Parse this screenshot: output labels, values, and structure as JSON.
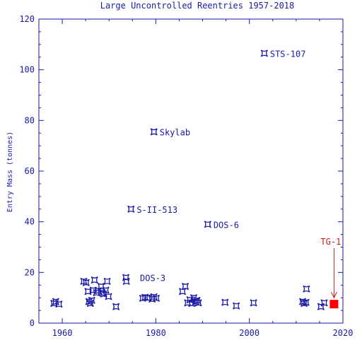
{
  "chart_data": {
    "type": "scatter",
    "title": "Large Uncontrolled Reentries 1957-2018",
    "xlabel": "",
    "ylabel": "Entry Mass (tonnes)",
    "xlim": [
      1955,
      2020
    ],
    "ylim": [
      0,
      120
    ],
    "x_ticks": [
      1960,
      1980,
      2000,
      2020
    ],
    "y_ticks": [
      0,
      20,
      40,
      60,
      80,
      100,
      120
    ],
    "grid": false,
    "series": [
      {
        "marker": "star",
        "color": "#1a1aa6",
        "points": [
          {
            "x": 1958.2,
            "y": 7.8
          },
          {
            "x": 1958.6,
            "y": 8.5
          },
          {
            "x": 1959.3,
            "y": 7.5
          },
          {
            "x": 1964.6,
            "y": 16.5
          },
          {
            "x": 1965.1,
            "y": 16.0
          },
          {
            "x": 1965.5,
            "y": 12.5
          },
          {
            "x": 1965.7,
            "y": 8.5
          },
          {
            "x": 1966.0,
            "y": 7.8
          },
          {
            "x": 1966.3,
            "y": 9.0
          },
          {
            "x": 1966.6,
            "y": 13.0
          },
          {
            "x": 1966.9,
            "y": 17.0
          },
          {
            "x": 1967.3,
            "y": 12.0
          },
          {
            "x": 1967.7,
            "y": 12.8
          },
          {
            "x": 1968.3,
            "y": 14.5
          },
          {
            "x": 1968.5,
            "y": 12.0
          },
          {
            "x": 1968.8,
            "y": 11.5
          },
          {
            "x": 1969.3,
            "y": 13.0
          },
          {
            "x": 1969.6,
            "y": 16.5
          },
          {
            "x": 1969.9,
            "y": 10.5
          },
          {
            "x": 1971.5,
            "y": 6.5
          },
          {
            "x": 1973.6,
            "y": 18.0
          },
          {
            "x": 1973.7,
            "y": 16.5
          },
          {
            "x": 1977.2,
            "y": 9.8
          },
          {
            "x": 1977.7,
            "y": 10.2
          },
          {
            "x": 1978.3,
            "y": 10.0
          },
          {
            "x": 1979.2,
            "y": 9.5
          },
          {
            "x": 1979.6,
            "y": 10.4
          },
          {
            "x": 1980.1,
            "y": 9.8
          },
          {
            "x": 1985.7,
            "y": 12.5
          },
          {
            "x": 1986.3,
            "y": 14.5
          },
          {
            "x": 1986.8,
            "y": 8.0
          },
          {
            "x": 1987.3,
            "y": 9.2
          },
          {
            "x": 1987.7,
            "y": 7.8
          },
          {
            "x": 1988.1,
            "y": 10.0
          },
          {
            "x": 1988.5,
            "y": 8.5
          },
          {
            "x": 1988.8,
            "y": 9.0
          },
          {
            "x": 1989.1,
            "y": 8.0
          },
          {
            "x": 1994.8,
            "y": 8.2
          },
          {
            "x": 1997.2,
            "y": 6.8
          },
          {
            "x": 2000.9,
            "y": 8.0
          },
          {
            "x": 2011.4,
            "y": 8.5
          },
          {
            "x": 2011.7,
            "y": 7.8
          },
          {
            "x": 2012.1,
            "y": 8.2
          },
          {
            "x": 2012.2,
            "y": 13.5
          },
          {
            "x": 2015.3,
            "y": 6.5
          },
          {
            "x": 2016.0,
            "y": 8.0
          },
          {
            "x": 1974.7,
            "y": 45.0,
            "label": "S-II-513"
          },
          {
            "x": 1979.6,
            "y": 75.5,
            "label": "Skylab"
          },
          {
            "x": 1991.1,
            "y": 39.0,
            "label": "DOS-6"
          },
          {
            "x": 2003.2,
            "y": 106.5,
            "label": "STS-107"
          }
        ]
      },
      {
        "marker": "square",
        "color": "#ff0000",
        "points": [
          {
            "x": 2018.1,
            "y": 7.5
          }
        ]
      }
    ],
    "annotations": [
      {
        "text": "DOS-3",
        "x": 1973.6,
        "y": 18.0,
        "color": "#1a1aa6"
      },
      {
        "text": "TG-1",
        "x": 2018.1,
        "y": 7.5,
        "color": "#c81e1e",
        "arrow": true
      }
    ]
  }
}
